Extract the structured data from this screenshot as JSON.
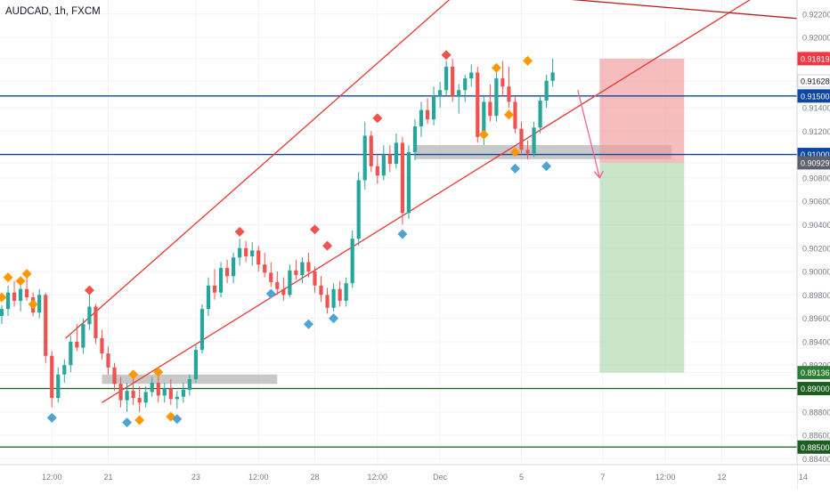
{
  "header": {
    "title": "AUDCAD, 1h, FXCM"
  },
  "colors": {
    "up": "#26a69a",
    "down": "#ef5350",
    "channel": "#e53935",
    "resistance": "#b71c1c",
    "level_blue": "#0d47a1",
    "level_green": "#1b5e20",
    "zone": "#b0b0b0",
    "fractal_up": "#ff9800",
    "fractal_down": "#4fa3d1",
    "fractal_top": "#ef5350",
    "tp_zone": "#a5d6a7",
    "sl_zone": "#ef9a9a"
  },
  "chart_data": {
    "type": "candlestick",
    "symbol": "AUDCAD",
    "timeframe": "1h",
    "source": "FXCM",
    "ylim": [
      0.8835,
      0.9232
    ],
    "y_ticks": [
      "0.92200",
      "0.92000",
      "0.91819",
      "0.91628",
      "0.91500",
      "0.91400",
      "0.91200",
      "0.91000",
      "0.90929",
      "0.90800",
      "0.90600",
      "0.90400",
      "0.90200",
      "0.90000",
      "0.89800",
      "0.89600",
      "0.89400",
      "0.89200",
      "0.89136",
      "0.89000",
      "0.88800",
      "0.88600",
      "0.88500",
      "0.88400"
    ],
    "x_ticks": [
      {
        "label": "12:00",
        "i": 8
      },
      {
        "label": "21",
        "i": 17
      },
      {
        "label": "23",
        "i": 31
      },
      {
        "label": "12:00",
        "i": 41
      },
      {
        "label": "28",
        "i": 50
      },
      {
        "label": "12:00",
        "i": 60
      },
      {
        "label": "Dec",
        "i": 70
      },
      {
        "label": "5",
        "i": 83
      },
      {
        "label": "7",
        "i": 96
      },
      {
        "label": "12:00",
        "i": 106
      },
      {
        "label": "12",
        "i": 115
      },
      {
        "label": "14",
        "i": 128
      }
    ],
    "candles": [
      [
        0.8962,
        0.8971,
        0.8955,
        0.8968
      ],
      [
        0.8968,
        0.8988,
        0.8962,
        0.8982
      ],
      [
        0.8982,
        0.8992,
        0.897,
        0.8975
      ],
      [
        0.8975,
        0.899,
        0.8966,
        0.8985
      ],
      [
        0.8985,
        0.8996,
        0.8975,
        0.8978
      ],
      [
        0.8978,
        0.8982,
        0.8962,
        0.8965
      ],
      [
        0.8965,
        0.8985,
        0.896,
        0.898
      ],
      [
        0.898,
        0.8982,
        0.8922,
        0.8928
      ],
      [
        0.8928,
        0.8932,
        0.8884,
        0.8892
      ],
      [
        0.8892,
        0.8918,
        0.8888,
        0.8912
      ],
      [
        0.8912,
        0.8925,
        0.8905,
        0.892
      ],
      [
        0.892,
        0.8945,
        0.8914,
        0.894
      ],
      [
        0.894,
        0.8955,
        0.8932,
        0.8935
      ],
      [
        0.8935,
        0.896,
        0.893,
        0.8955
      ],
      [
        0.8955,
        0.8981,
        0.895,
        0.897
      ],
      [
        0.897,
        0.8972,
        0.8938,
        0.8943
      ],
      [
        0.8943,
        0.895,
        0.8925,
        0.893
      ],
      [
        0.893,
        0.8936,
        0.8912,
        0.8918
      ],
      [
        0.8918,
        0.8922,
        0.8898,
        0.8904
      ],
      [
        0.8904,
        0.891,
        0.8884,
        0.889
      ],
      [
        0.889,
        0.8905,
        0.888,
        0.8898
      ],
      [
        0.8898,
        0.891,
        0.8886,
        0.8892
      ],
      [
        0.8892,
        0.8902,
        0.888,
        0.8888
      ],
      [
        0.8888,
        0.8902,
        0.8884,
        0.8897
      ],
      [
        0.8897,
        0.891,
        0.8893,
        0.8905
      ],
      [
        0.8905,
        0.8912,
        0.8888,
        0.8894
      ],
      [
        0.8894,
        0.8905,
        0.8888,
        0.89
      ],
      [
        0.89,
        0.8908,
        0.8886,
        0.8891
      ],
      [
        0.8891,
        0.8898,
        0.8883,
        0.8893
      ],
      [
        0.8893,
        0.8905,
        0.8888,
        0.8899
      ],
      [
        0.8899,
        0.8912,
        0.8894,
        0.8908
      ],
      [
        0.8908,
        0.8938,
        0.8905,
        0.8933
      ],
      [
        0.8933,
        0.8972,
        0.893,
        0.8968
      ],
      [
        0.8968,
        0.8995,
        0.8962,
        0.8988
      ],
      [
        0.8988,
        0.9002,
        0.8976,
        0.8982
      ],
      [
        0.8982,
        0.9008,
        0.8978,
        0.9003
      ],
      [
        0.9003,
        0.901,
        0.899,
        0.8996
      ],
      [
        0.8996,
        0.9016,
        0.899,
        0.9012
      ],
      [
        0.9012,
        0.9028,
        0.9005,
        0.902
      ],
      [
        0.902,
        0.9026,
        0.9008,
        0.9013
      ],
      [
        0.9013,
        0.9025,
        0.9005,
        0.9018
      ],
      [
        0.9018,
        0.9022,
        0.9,
        0.9006
      ],
      [
        0.9006,
        0.9016,
        0.8995,
        0.8999
      ],
      [
        0.8999,
        0.9008,
        0.8987,
        0.8991
      ],
      [
        0.8991,
        0.9,
        0.898,
        0.8985
      ],
      [
        0.8985,
        0.8995,
        0.8975,
        0.898
      ],
      [
        0.898,
        0.9006,
        0.8978,
        0.9001
      ],
      [
        0.9001,
        0.901,
        0.8993,
        0.8997
      ],
      [
        0.8997,
        0.9012,
        0.899,
        0.9008
      ],
      [
        0.9008,
        0.9016,
        0.8995,
        0.9
      ],
      [
        0.9,
        0.9004,
        0.8982,
        0.8988
      ],
      [
        0.8988,
        0.8996,
        0.8974,
        0.898
      ],
      [
        0.898,
        0.8986,
        0.8964,
        0.8969
      ],
      [
        0.8969,
        0.899,
        0.8966,
        0.8985
      ],
      [
        0.8985,
        0.8992,
        0.897,
        0.8975
      ],
      [
        0.8975,
        0.8995,
        0.897,
        0.899
      ],
      [
        0.899,
        0.9035,
        0.8986,
        0.9028
      ],
      [
        0.9028,
        0.9085,
        0.9022,
        0.9078
      ],
      [
        0.9078,
        0.9128,
        0.907,
        0.9116
      ],
      [
        0.9116,
        0.912,
        0.9085,
        0.909
      ],
      [
        0.909,
        0.91,
        0.9075,
        0.9082
      ],
      [
        0.9082,
        0.9108,
        0.9078,
        0.91
      ],
      [
        0.91,
        0.9108,
        0.9085,
        0.9092
      ],
      [
        0.9092,
        0.9118,
        0.9088,
        0.911
      ],
      [
        0.911,
        0.9115,
        0.904,
        0.905
      ],
      [
        0.905,
        0.9108,
        0.9045,
        0.9102
      ],
      [
        0.9102,
        0.913,
        0.9095,
        0.9124
      ],
      [
        0.9124,
        0.9145,
        0.9115,
        0.9138
      ],
      [
        0.9138,
        0.9148,
        0.9126,
        0.913
      ],
      [
        0.913,
        0.9158,
        0.9125,
        0.915
      ],
      [
        0.915,
        0.9162,
        0.914,
        0.9155
      ],
      [
        0.9155,
        0.918,
        0.915,
        0.9175
      ],
      [
        0.9175,
        0.9182,
        0.9145,
        0.915
      ],
      [
        0.915,
        0.916,
        0.9135,
        0.9155
      ],
      [
        0.9155,
        0.9168,
        0.9145,
        0.9165
      ],
      [
        0.9165,
        0.9177,
        0.9158,
        0.917
      ],
      [
        0.917,
        0.9175,
        0.911,
        0.9115
      ],
      [
        0.9115,
        0.915,
        0.9108,
        0.9145
      ],
      [
        0.9145,
        0.916,
        0.9128,
        0.9133
      ],
      [
        0.9133,
        0.917,
        0.9128,
        0.9165
      ],
      [
        0.9165,
        0.918,
        0.915,
        0.9158
      ],
      [
        0.9158,
        0.9175,
        0.914,
        0.9145
      ],
      [
        0.9145,
        0.915,
        0.9118,
        0.9122
      ],
      [
        0.9122,
        0.9128,
        0.91,
        0.9104
      ],
      [
        0.9104,
        0.9112,
        0.9096,
        0.9101
      ],
      [
        0.9101,
        0.9128,
        0.9098,
        0.9123
      ],
      [
        0.9123,
        0.915,
        0.9118,
        0.9146
      ],
      [
        0.9146,
        0.9168,
        0.914,
        0.9163
      ],
      [
        0.9163,
        0.9182,
        0.9158,
        0.917
      ]
    ],
    "horizontal_levels": [
      {
        "price": 0.915,
        "label": "0.91500",
        "color": "#0d47a1"
      },
      {
        "price": 0.91,
        "label": "0.91000",
        "color": "#0d47a1"
      },
      {
        "price": 0.89,
        "label": "0.89000",
        "color": "#1b5e20"
      },
      {
        "price": 0.885,
        "label": "0.88500",
        "color": "#1b5e20"
      }
    ],
    "price_tags": [
      {
        "price": 0.91819,
        "label": "0.91819",
        "color": "#f23645"
      },
      {
        "price": 0.91628,
        "label": "0.91628",
        "color": "#ffffff"
      },
      {
        "price": 0.90929,
        "label": "0.90929",
        "color": "#5d606b"
      },
      {
        "price": 0.89136,
        "label": "0.89136",
        "color": "#2e7d32"
      }
    ],
    "ascending_channel": {
      "upper": [
        [
          10.2,
          0.8943
        ],
        [
          72.5,
          0.9237
        ]
      ],
      "lower": [
        [
          16.0,
          0.8888
        ],
        [
          102.0,
          0.9174
        ]
      ],
      "lower_extended_to": 120.0
    },
    "resistance_line": [
      [
        52.0,
        0.925
      ],
      [
        132.0,
        0.9214
      ]
    ],
    "zones": [
      {
        "x0": 16.0,
        "x1": 44.0,
        "y0": 0.8912,
        "y1": 0.8904
      },
      {
        "x0": 66.0,
        "x1": 107.0,
        "y0": 0.9108,
        "y1": 0.9096
      }
    ],
    "position": {
      "x0": 95.5,
      "x1": 109.0,
      "entry": 0.90929,
      "stop": 0.91819,
      "target": 0.89136
    },
    "forecast_arrow": [
      [
        92.0,
        0.9155
      ],
      [
        95.5,
        0.908
      ]
    ],
    "fractals": {
      "orange_up": [
        [
          0,
          0.8978
        ],
        [
          1,
          0.8995
        ],
        [
          3,
          0.8992
        ],
        [
          4,
          0.8998
        ],
        [
          5,
          0.8972
        ],
        [
          21,
          0.8912
        ],
        [
          22,
          0.8873
        ],
        [
          25,
          0.8914
        ],
        [
          27,
          0.8876
        ],
        [
          77,
          0.9117
        ],
        [
          79,
          0.9174
        ],
        [
          81,
          0.9134
        ],
        [
          82,
          0.9102
        ],
        [
          84,
          0.918
        ]
      ],
      "blue_down": [
        [
          8,
          0.8875
        ],
        [
          20,
          0.8871
        ],
        [
          28,
          0.8874
        ],
        [
          43,
          0.8981
        ],
        [
          49,
          0.8955
        ],
        [
          53,
          0.896
        ],
        [
          64,
          0.9032
        ],
        [
          82,
          0.9088
        ],
        [
          87,
          0.909
        ]
      ],
      "red_top": [
        [
          14,
          0.8984
        ],
        [
          38,
          0.9034
        ],
        [
          50,
          0.9036
        ],
        [
          52,
          0.9022
        ],
        [
          60,
          0.9131
        ],
        [
          71,
          0.9185
        ]
      ]
    }
  }
}
